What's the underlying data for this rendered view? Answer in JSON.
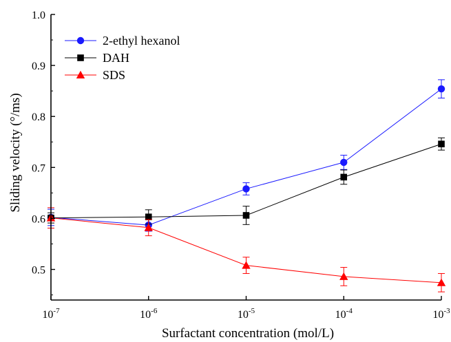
{
  "chart_data": {
    "type": "line",
    "xlabel": "Surfactant concentration (mol/L)",
    "ylabel": "Sliding velocity (°/ms)",
    "x_scale": "log",
    "xlim": [
      1e-07,
      0.001
    ],
    "ylim": [
      0.44,
      1.0
    ],
    "x_ticks": [
      {
        "value": 1e-07,
        "base": "10",
        "exp": "-7"
      },
      {
        "value": 1e-06,
        "base": "10",
        "exp": "-6"
      },
      {
        "value": 1e-05,
        "base": "10",
        "exp": "-5"
      },
      {
        "value": 0.0001,
        "base": "10",
        "exp": "-4"
      },
      {
        "value": 0.001,
        "base": "10",
        "exp": "-3"
      }
    ],
    "y_ticks": [
      {
        "value": 0.5,
        "label": "0.5"
      },
      {
        "value": 0.6,
        "label": "0.6"
      },
      {
        "value": 0.7,
        "label": "0.7"
      },
      {
        "value": 0.8,
        "label": "0.8"
      },
      {
        "value": 0.9,
        "label": "0.9"
      },
      {
        "value": 1.0,
        "label": "1.0"
      }
    ],
    "grid": false,
    "legend_position": "top-left",
    "x": [
      1e-07,
      1e-06,
      1e-05,
      0.0001,
      0.001
    ],
    "series": [
      {
        "name": "2-ethyl hexanol",
        "color": "#1a1aff",
        "marker": "circle",
        "values": [
          0.602,
          0.587,
          0.658,
          0.71,
          0.854
        ],
        "errors": [
          0.016,
          0.012,
          0.012,
          0.014,
          0.018
        ]
      },
      {
        "name": "DAH",
        "color": "#000000",
        "marker": "square",
        "values": [
          0.601,
          0.603,
          0.606,
          0.681,
          0.746
        ],
        "errors": [
          0.01,
          0.014,
          0.018,
          0.014,
          0.012
        ]
      },
      {
        "name": "SDS",
        "color": "#ff0000",
        "marker": "triangle",
        "values": [
          0.601,
          0.582,
          0.508,
          0.486,
          0.474
        ],
        "errors": [
          0.02,
          0.016,
          0.016,
          0.018,
          0.018
        ]
      }
    ]
  }
}
